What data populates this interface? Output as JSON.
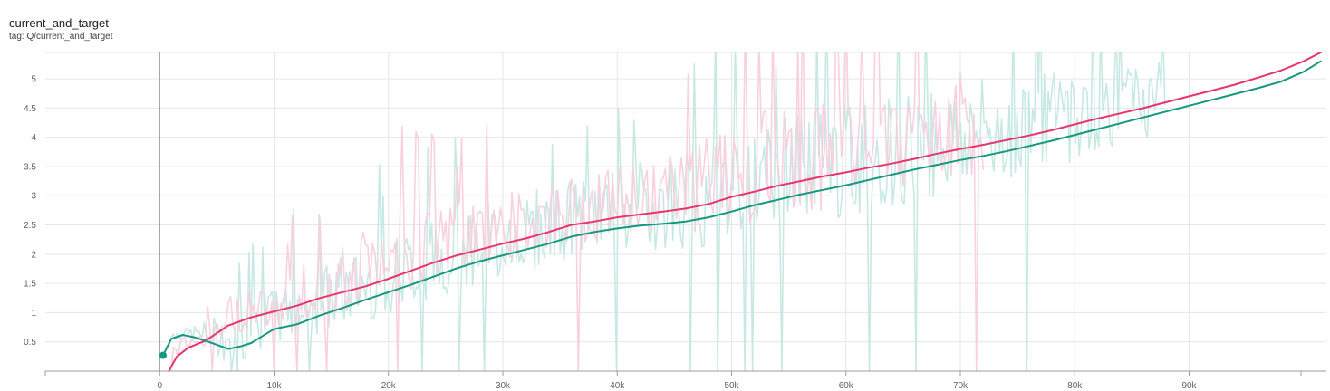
{
  "header": {
    "title": "current_and_target",
    "subtitle": "tag: Q/current_and_target"
  },
  "colors": {
    "current": "#e7356e",
    "current_raw": "#f9cfdc",
    "target": "#16977f",
    "target_raw": "#c5e8e1",
    "grid": "#e6e6e6",
    "axis": "#9e9e9e",
    "zero_line": "#8a8a8a"
  },
  "chart_data": {
    "type": "line",
    "title": "current_and_target",
    "xlabel": "",
    "ylabel": "",
    "xlim": [
      -10000,
      102000
    ],
    "ylim": [
      0,
      5.45
    ],
    "grid": true,
    "x_ticks": [
      0,
      10000,
      20000,
      30000,
      40000,
      50000,
      60000,
      70000,
      80000,
      90000
    ],
    "x_tick_labels": [
      "0",
      "10k",
      "20k",
      "30k",
      "40k",
      "50k",
      "60k",
      "70k",
      "80k",
      "90k"
    ],
    "y_ticks": [
      0.5,
      1,
      1.5,
      2,
      2.5,
      3,
      3.5,
      4,
      4.5,
      5
    ],
    "y_tick_labels": [
      "0.5",
      "1",
      "1.5",
      "2",
      "2.5",
      "3",
      "3.5",
      "4",
      "4.5",
      "5"
    ],
    "series": [
      {
        "key": "current",
        "smoothed": {
          "x": [
            800,
            1500,
            2500,
            4000,
            6000,
            8000,
            10000,
            12000,
            14000,
            16000,
            18000,
            20000,
            22000,
            24000,
            26000,
            28000,
            30000,
            32000,
            34000,
            36000,
            38000,
            40000,
            42000,
            44000,
            46000,
            48000,
            50000,
            52000,
            54000,
            56000,
            58000,
            60000,
            62000,
            64000,
            66000,
            68000,
            70000,
            72000,
            74000,
            76000,
            78000,
            80000,
            82000,
            84000,
            86000,
            88000,
            90000,
            92000,
            94000,
            96000,
            98000,
            100000,
            101500
          ],
          "y": [
            0.0,
            0.25,
            0.4,
            0.52,
            0.78,
            0.92,
            1.02,
            1.12,
            1.25,
            1.35,
            1.45,
            1.58,
            1.72,
            1.86,
            1.98,
            2.08,
            2.18,
            2.27,
            2.38,
            2.5,
            2.56,
            2.63,
            2.68,
            2.73,
            2.78,
            2.86,
            2.98,
            3.07,
            3.17,
            3.25,
            3.33,
            3.4,
            3.48,
            3.55,
            3.63,
            3.72,
            3.8,
            3.87,
            3.95,
            4.03,
            4.12,
            4.22,
            4.32,
            4.41,
            4.5,
            4.6,
            4.7,
            4.8,
            4.9,
            5.02,
            5.14,
            5.3,
            5.45
          ]
        },
        "raw_envelope": {
          "x": [
            1000,
            4000,
            6000,
            8000,
            10000,
            13000,
            16000,
            20000,
            24000,
            28000,
            32000,
            36000,
            40000,
            44000,
            48000,
            52000,
            56000,
            60000,
            64000,
            68000,
            72000
          ],
          "y": [
            0.55,
            0.75,
            1.35,
            1.45,
            1.7,
            2.05,
            2.3,
            2.75,
            2.85,
            3.05,
            3.2,
            3.4,
            3.6,
            3.8,
            4.25,
            4.6,
            4.9,
            5.1,
            5.2,
            5.3,
            5.35
          ]
        }
      },
      {
        "key": "target",
        "smoothed": {
          "x": [
            300,
            1000,
            2000,
            3000,
            4000,
            5000,
            6000,
            7000,
            8000,
            9000,
            10000,
            12000,
            14000,
            16000,
            18000,
            20000,
            22000,
            24000,
            26000,
            28000,
            30000,
            32000,
            34000,
            36000,
            38000,
            40000,
            42000,
            44000,
            46000,
            48000,
            50000,
            52000,
            54000,
            56000,
            58000,
            60000,
            62000,
            64000,
            66000,
            68000,
            70000,
            72000,
            74000,
            76000,
            78000,
            80000,
            82000,
            84000,
            86000,
            88000,
            90000,
            92000,
            94000,
            96000,
            98000,
            100000,
            101500
          ],
          "y": [
            0.27,
            0.55,
            0.62,
            0.58,
            0.52,
            0.45,
            0.38,
            0.42,
            0.48,
            0.6,
            0.72,
            0.8,
            0.95,
            1.08,
            1.22,
            1.35,
            1.48,
            1.62,
            1.76,
            1.88,
            1.98,
            2.08,
            2.18,
            2.3,
            2.38,
            2.44,
            2.49,
            2.52,
            2.56,
            2.63,
            2.73,
            2.84,
            2.93,
            3.02,
            3.1,
            3.18,
            3.27,
            3.36,
            3.45,
            3.53,
            3.61,
            3.68,
            3.76,
            3.85,
            3.94,
            4.04,
            4.14,
            4.24,
            4.34,
            4.44,
            4.54,
            4.64,
            4.74,
            4.84,
            4.95,
            5.12,
            5.3
          ]
        },
        "raw_envelope": {
          "x": [
            500,
            4000,
            8000,
            12000,
            16000,
            20000,
            24000,
            28000,
            32000,
            36000,
            40000,
            44000,
            48000,
            52000,
            56000,
            60000,
            64000,
            68000,
            72000,
            76000,
            80000,
            84000,
            88000
          ],
          "y": [
            0.6,
            0.9,
            1.3,
            1.7,
            2.1,
            2.4,
            2.7,
            3.0,
            3.2,
            3.4,
            3.6,
            3.8,
            4.1,
            4.4,
            4.6,
            4.8,
            4.95,
            5.05,
            5.15,
            5.25,
            5.3,
            5.35,
            5.4
          ]
        }
      }
    ]
  }
}
